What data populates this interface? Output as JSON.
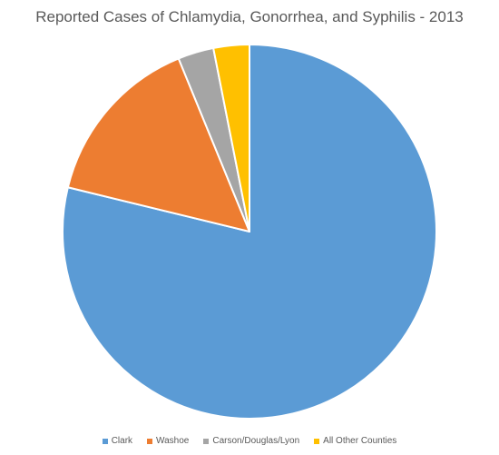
{
  "chart_data": {
    "type": "pie",
    "title": "Reported Cases of Chlamydia, Gonorrhea, and Syphilis - 2013",
    "start_angle_deg": 0,
    "direction": "clockwise",
    "legend_position": "bottom",
    "slices": [
      {
        "label": "Clark",
        "value": 78.8,
        "color": "#5B9BD5"
      },
      {
        "label": "Washoe",
        "value": 15.0,
        "color": "#ED7D31"
      },
      {
        "label": "Carson/Douglas/Lyon",
        "value": 3.1,
        "color": "#A5A5A5"
      },
      {
        "label": "All Other Counties",
        "value": 3.1,
        "color": "#FFC000"
      }
    ]
  }
}
